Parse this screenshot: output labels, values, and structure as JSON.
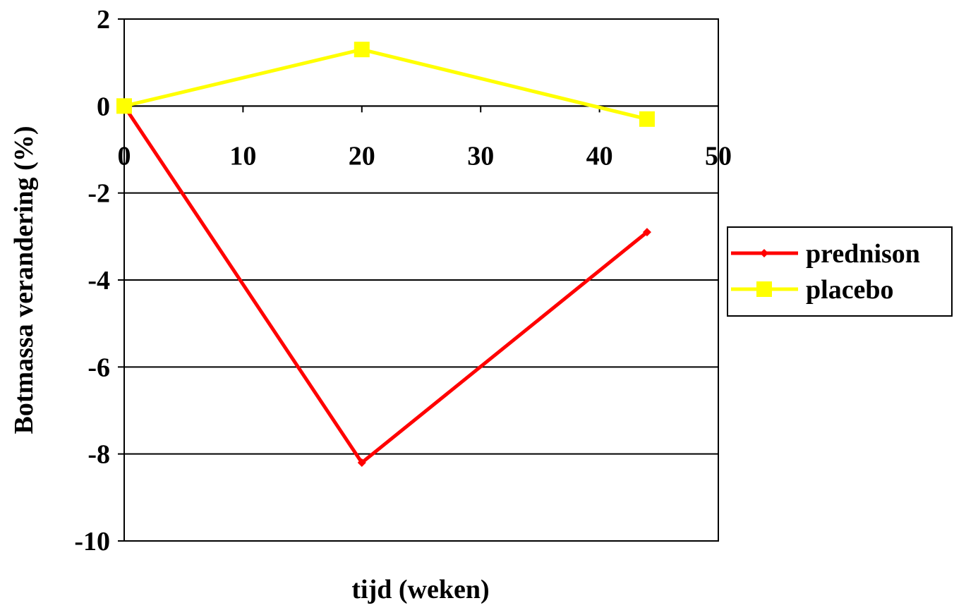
{
  "chart_data": {
    "type": "line",
    "title": "",
    "xlabel": "tijd (weken)",
    "ylabel": "Botmassa verandering (%)",
    "xlim": [
      0,
      50
    ],
    "ylim": [
      -10,
      2
    ],
    "x_ticks": [
      "0",
      "10",
      "20",
      "30",
      "40",
      "50"
    ],
    "y_ticks": [
      "2",
      "0",
      "-2",
      "-4",
      "-6",
      "-8",
      "-10"
    ],
    "grid": "horizontal",
    "legend_position": "right",
    "series": [
      {
        "name": "prednison",
        "color": "#ff0000",
        "marker": "diamond",
        "x": [
          0,
          20,
          44
        ],
        "y": [
          0,
          -8.2,
          -2.9
        ]
      },
      {
        "name": "placebo",
        "color": "#ffff00",
        "marker": "square",
        "x": [
          0,
          20,
          44
        ],
        "y": [
          0,
          1.3,
          -0.3
        ]
      }
    ]
  }
}
